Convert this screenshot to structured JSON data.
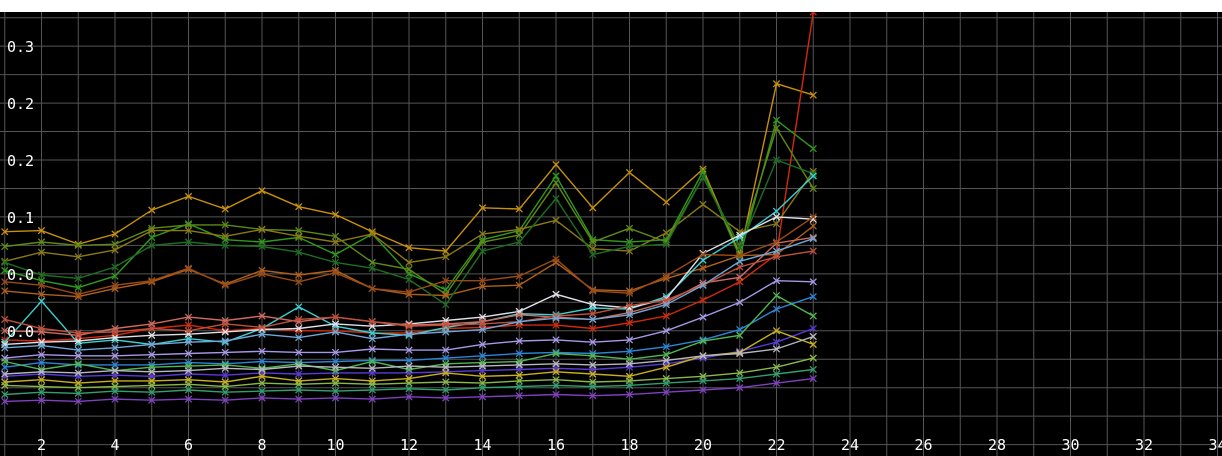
{
  "chart_data": {
    "type": "line",
    "title": "",
    "xlabel": "",
    "ylabel": "",
    "xlim": [
      1,
      35
    ],
    "ylim": [
      -0.06,
      0.33
    ],
    "grid": true,
    "background": "#000000",
    "grid_color": "#555555",
    "x_ticks": [
      "2",
      "4",
      "6",
      "8",
      "10",
      "12",
      "14",
      "16",
      "18",
      "20",
      "22",
      "24",
      "26",
      "28",
      "30",
      "32",
      "34"
    ],
    "y_ticks": [
      {
        "value": 0.3,
        "label": "0.3"
      },
      {
        "value": 0.25,
        "label": "0.2"
      },
      {
        "value": 0.2,
        "label": "0.2"
      },
      {
        "value": 0.15,
        "label": "0.1"
      },
      {
        "value": 0.1,
        "label": "0.0"
      },
      {
        "value": 0.05,
        "label": "0.0"
      }
    ],
    "x": [
      1,
      2,
      3,
      4,
      5,
      6,
      7,
      8,
      9,
      10,
      11,
      12,
      13,
      14,
      15,
      16,
      17,
      18,
      19,
      20,
      21,
      22,
      23
    ],
    "series": [
      {
        "color": "#c8900a",
        "values": [
          0.137,
          0.138,
          0.126,
          0.135,
          0.156,
          0.168,
          0.157,
          0.173,
          0.159,
          0.152,
          0.137,
          0.123,
          0.12,
          0.158,
          0.157,
          0.196,
          0.158,
          0.189,
          0.163,
          0.192,
          0.117,
          0.267,
          0.257
        ]
      },
      {
        "color": "#d42a0a",
        "values": [
          0.042,
          0.041,
          0.043,
          0.046,
          0.052,
          0.055,
          0.05,
          0.052,
          0.05,
          0.05,
          0.048,
          0.048,
          0.052,
          0.053,
          0.055,
          0.055,
          0.052,
          0.057,
          0.063,
          0.077,
          0.093,
          0.117,
          0.33
        ]
      },
      {
        "color": "#2e9a1a",
        "values": [
          0.103,
          0.094,
          0.088,
          0.098,
          0.132,
          0.144,
          0.13,
          0.128,
          0.132,
          0.117,
          0.135,
          0.1,
          0.086,
          0.13,
          0.138,
          0.186,
          0.13,
          0.128,
          0.13,
          0.19,
          0.115,
          0.235,
          0.21
        ]
      },
      {
        "color": "#5e8a14",
        "values": [
          0.124,
          0.128,
          0.125,
          0.126,
          0.14,
          0.143,
          0.143,
          0.139,
          0.138,
          0.133,
          0.11,
          0.104,
          0.082,
          0.128,
          0.134,
          0.18,
          0.128,
          0.14,
          0.128,
          0.185,
          0.124,
          0.228,
          0.175
        ]
      },
      {
        "color": "#8a7a14",
        "values": [
          0.111,
          0.119,
          0.115,
          0.121,
          0.138,
          0.138,
          0.133,
          0.139,
          0.133,
          0.128,
          0.135,
          0.11,
          0.115,
          0.135,
          0.139,
          0.147,
          0.122,
          0.12,
          0.136,
          0.161,
          0.137,
          0.144,
          0.19
        ]
      },
      {
        "color": "#b06018",
        "values": [
          0.085,
          0.082,
          0.08,
          0.087,
          0.093,
          0.104,
          0.091,
          0.103,
          0.099,
          0.103,
          0.087,
          0.082,
          0.081,
          0.089,
          0.09,
          0.11,
          0.086,
          0.085,
          0.096,
          0.105,
          0.116,
          0.117,
          0.142
        ]
      },
      {
        "color": "#1c6f20",
        "values": [
          0.11,
          0.099,
          0.096,
          0.106,
          0.125,
          0.128,
          0.125,
          0.124,
          0.119,
          0.11,
          0.105,
          0.095,
          0.073,
          0.12,
          0.128,
          0.166,
          0.117,
          0.124,
          0.126,
          0.185,
          0.123,
          0.2,
          0.188
        ]
      },
      {
        "color": "#3ad2d2",
        "values": [
          0.04,
          0.076,
          0.039,
          0.042,
          0.038,
          0.043,
          0.04,
          0.052,
          0.071,
          0.054,
          0.048,
          0.046,
          0.053,
          0.058,
          0.065,
          0.064,
          0.07,
          0.069,
          0.08,
          0.112,
          0.132,
          0.155,
          0.186
        ]
      },
      {
        "color": "#e0e0e8",
        "values": [
          0.038,
          0.04,
          0.041,
          0.044,
          0.046,
          0.047,
          0.049,
          0.051,
          0.052,
          0.056,
          0.054,
          0.056,
          0.059,
          0.062,
          0.067,
          0.082,
          0.073,
          0.07,
          0.078,
          0.118,
          0.134,
          0.15,
          0.148
        ]
      },
      {
        "color": "#d06a60",
        "values": [
          0.05,
          0.049,
          0.046,
          0.052,
          0.056,
          0.062,
          0.059,
          0.063,
          0.058,
          0.062,
          0.058,
          0.055,
          0.056,
          0.058,
          0.064,
          0.062,
          0.06,
          0.066,
          0.075,
          0.092,
          0.097,
          0.127,
          0.132
        ]
      },
      {
        "color": "#c0503a",
        "values": [
          0.06,
          0.052,
          0.048,
          0.049,
          0.052,
          0.05,
          0.056,
          0.053,
          0.06,
          0.062,
          0.058,
          0.054,
          0.055,
          0.056,
          0.058,
          0.063,
          0.065,
          0.072,
          0.077,
          0.09,
          0.106,
          0.115,
          0.12
        ]
      },
      {
        "color": "#9a4a14",
        "values": [
          0.093,
          0.09,
          0.082,
          0.09,
          0.094,
          0.105,
          0.09,
          0.1,
          0.093,
          0.101,
          0.087,
          0.084,
          0.094,
          0.094,
          0.098,
          0.113,
          0.085,
          0.083,
          0.098,
          0.117,
          0.116,
          0.128,
          0.15
        ]
      },
      {
        "color": "#70a8d8",
        "values": [
          0.035,
          0.037,
          0.033,
          0.035,
          0.038,
          0.04,
          0.041,
          0.047,
          0.044,
          0.049,
          0.043,
          0.047,
          0.049,
          0.051,
          0.058,
          0.061,
          0.06,
          0.064,
          0.073,
          0.09,
          0.111,
          0.12,
          0.131
        ]
      },
      {
        "color": "#a898e8",
        "values": [
          0.026,
          0.029,
          0.028,
          0.028,
          0.029,
          0.03,
          0.031,
          0.032,
          0.031,
          0.031,
          0.034,
          0.033,
          0.033,
          0.038,
          0.041,
          0.042,
          0.04,
          0.042,
          0.05,
          0.062,
          0.075,
          0.094,
          0.093
        ]
      },
      {
        "color": "#2a86d8",
        "values": [
          0.018,
          0.022,
          0.02,
          0.02,
          0.02,
          0.022,
          0.021,
          0.023,
          0.022,
          0.023,
          0.024,
          0.024,
          0.026,
          0.028,
          0.03,
          0.031,
          0.03,
          0.032,
          0.036,
          0.042,
          0.051,
          0.069,
          0.08
        ]
      },
      {
        "color": "#5a3ad8",
        "values": [
          0.01,
          0.012,
          0.01,
          0.011,
          0.01,
          0.012,
          0.011,
          0.013,
          0.012,
          0.013,
          0.013,
          0.013,
          0.014,
          0.015,
          0.016,
          0.017,
          0.016,
          0.018,
          0.021,
          0.026,
          0.032,
          0.04,
          0.052
        ]
      },
      {
        "color": "#c8b020",
        "values": [
          0.005,
          0.007,
          0.004,
          0.006,
          0.006,
          0.007,
          0.005,
          0.01,
          0.006,
          0.008,
          0.006,
          0.008,
          0.013,
          0.01,
          0.011,
          0.014,
          0.012,
          0.01,
          0.018,
          0.028,
          0.031,
          0.05,
          0.038
        ]
      },
      {
        "color": "#50b850",
        "values": [
          0.023,
          0.016,
          0.021,
          0.015,
          0.018,
          0.019,
          0.02,
          0.017,
          0.021,
          0.015,
          0.023,
          0.016,
          0.021,
          0.022,
          0.023,
          0.03,
          0.028,
          0.025,
          0.029,
          0.041,
          0.046,
          0.081,
          0.063
        ]
      },
      {
        "color": "#8ab848",
        "values": [
          0.002,
          0.001,
          0.0,
          0.001,
          0.002,
          0.003,
          0.001,
          0.004,
          0.003,
          0.004,
          0.003,
          0.004,
          0.005,
          0.004,
          0.006,
          0.007,
          0.005,
          0.006,
          0.008,
          0.01,
          0.013,
          0.018,
          0.026
        ]
      },
      {
        "color": "#b8b8c0",
        "values": [
          0.012,
          0.014,
          0.013,
          0.015,
          0.014,
          0.015,
          0.017,
          0.016,
          0.019,
          0.018,
          0.017,
          0.019,
          0.018,
          0.019,
          0.02,
          0.021,
          0.02,
          0.021,
          0.024,
          0.028,
          0.03,
          0.034,
          0.045
        ]
      },
      {
        "color": "#30a070",
        "values": [
          -0.006,
          -0.004,
          -0.005,
          -0.003,
          -0.004,
          -0.002,
          -0.004,
          -0.003,
          -0.002,
          -0.003,
          -0.002,
          -0.001,
          -0.002,
          0.0,
          0.001,
          0.002,
          0.001,
          0.002,
          0.004,
          0.006,
          0.008,
          0.012,
          0.016
        ]
      },
      {
        "color": "#8040c0",
        "values": [
          -0.012,
          -0.011,
          -0.012,
          -0.01,
          -0.011,
          -0.01,
          -0.011,
          -0.009,
          -0.01,
          -0.009,
          -0.01,
          -0.008,
          -0.009,
          -0.008,
          -0.007,
          -0.006,
          -0.007,
          -0.006,
          -0.004,
          -0.002,
          0.0,
          0.004,
          0.008
        ]
      }
    ]
  }
}
